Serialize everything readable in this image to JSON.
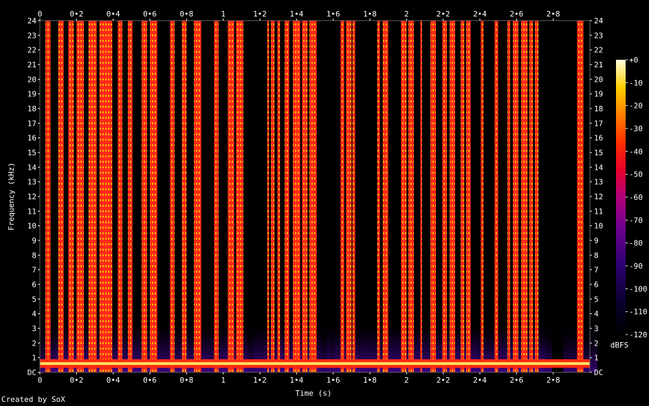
{
  "chart_data": {
    "type": "heatmap",
    "xlabel": "Time (s)",
    "ylabel": "Frequency (kHz)",
    "xlim": [
      0,
      3.0
    ],
    "ylim": [
      0,
      24
    ],
    "x_ticks": [
      "0",
      "0•2",
      "0•4",
      "0•6",
      "0•8",
      "1",
      "1•2",
      "1•4",
      "1•6",
      "1•8",
      "2",
      "2•2",
      "2•4",
      "2•6",
      "2•8"
    ],
    "x_tick_values": [
      0,
      0.2,
      0.4,
      0.6,
      0.8,
      1.0,
      1.2,
      1.4,
      1.6,
      1.8,
      2.0,
      2.2,
      2.4,
      2.6,
      2.8
    ],
    "y_ticks": [
      "DC",
      "1",
      "2",
      "3",
      "4",
      "5",
      "6",
      "7",
      "8",
      "9",
      "10",
      "11",
      "12",
      "13",
      "14",
      "15",
      "16",
      "17",
      "18",
      "19",
      "20",
      "21",
      "22",
      "23",
      "24"
    ],
    "colorbar": {
      "label": "dBFS",
      "ticks": [
        "+0",
        "-10",
        "-20",
        "-30",
        "-40",
        "-50",
        "-60",
        "-70",
        "-80",
        "-90",
        "-100",
        "-110",
        "-120"
      ],
      "range": [
        -120,
        0
      ]
    },
    "broadband_bursts_s": [
      [
        0.03,
        0.058
      ],
      [
        0.1,
        0.13
      ],
      [
        0.155,
        0.185
      ],
      [
        0.2,
        0.24
      ],
      [
        0.265,
        0.31
      ],
      [
        0.325,
        0.395
      ],
      [
        0.425,
        0.45
      ],
      [
        0.48,
        0.505
      ],
      [
        0.555,
        0.585
      ],
      [
        0.6,
        0.64
      ],
      [
        0.71,
        0.735
      ],
      [
        0.775,
        0.8
      ],
      [
        0.84,
        0.88
      ],
      [
        0.95,
        0.975
      ],
      [
        1.025,
        1.06
      ],
      [
        1.07,
        1.11
      ],
      [
        1.24,
        1.25
      ],
      [
        1.26,
        1.28
      ],
      [
        1.295,
        1.31
      ],
      [
        1.335,
        1.36
      ],
      [
        1.38,
        1.42
      ],
      [
        1.43,
        1.46
      ],
      [
        1.47,
        1.51
      ],
      [
        1.64,
        1.66
      ],
      [
        1.67,
        1.7
      ],
      [
        1.705,
        1.72
      ],
      [
        1.84,
        1.855
      ],
      [
        1.87,
        1.9
      ],
      [
        1.97,
        2.0
      ],
      [
        2.01,
        2.04
      ],
      [
        2.075,
        2.085
      ],
      [
        2.13,
        2.16
      ],
      [
        2.195,
        2.22
      ],
      [
        2.235,
        2.265
      ],
      [
        2.295,
        2.315
      ],
      [
        2.325,
        2.35
      ],
      [
        2.405,
        2.42
      ],
      [
        2.48,
        2.5
      ],
      [
        2.55,
        2.565
      ],
      [
        2.58,
        2.61
      ],
      [
        2.625,
        2.66
      ],
      [
        2.67,
        2.69
      ],
      [
        2.7,
        2.72
      ],
      [
        2.93,
        2.965
      ]
    ],
    "low_frequency_band_khz": [
      0.4,
      0.8
    ]
  },
  "footer": "Created by SoX"
}
